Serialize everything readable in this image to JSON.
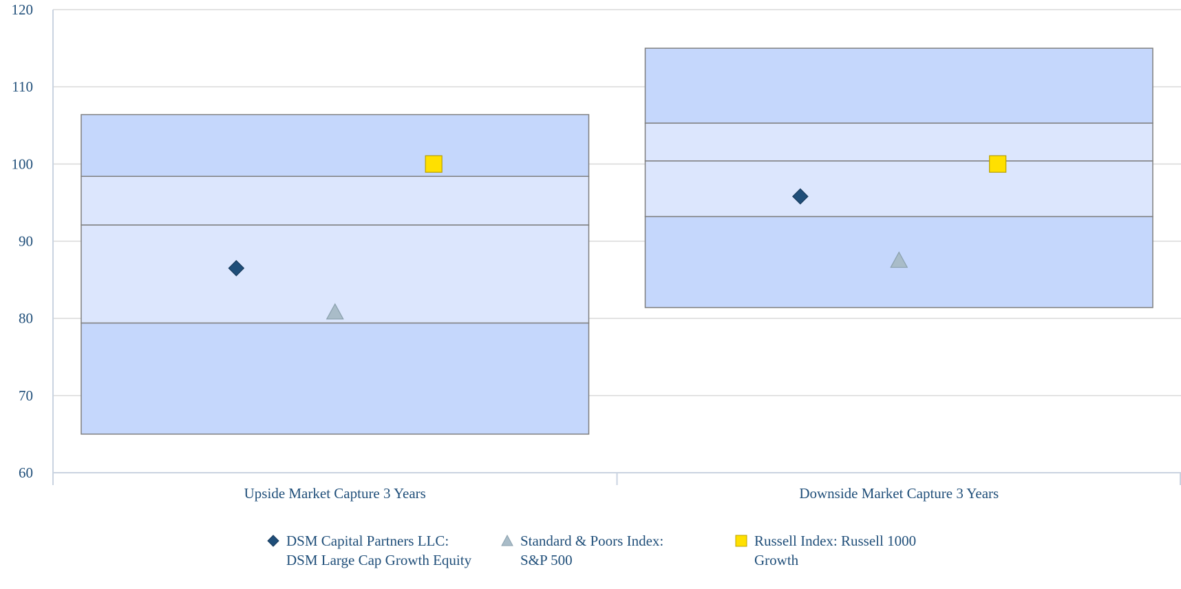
{
  "chart_data": {
    "type": "floating-bar",
    "title": "",
    "xlabel": "",
    "ylabel": "",
    "ylim": [
      60,
      120
    ],
    "yticks": [
      60,
      70,
      80,
      90,
      100,
      110,
      120
    ],
    "grid": true,
    "legend_position": "bottom",
    "categories": [
      "Upside Market Capture 3 Years",
      "Downside Market Capture 3 Years"
    ],
    "ranges": [
      {
        "category": "Upside Market Capture 3 Years",
        "bands": [
          65.0,
          79.4,
          92.1,
          98.4,
          106.4
        ]
      },
      {
        "category": "Downside Market Capture 3 Years",
        "bands": [
          81.4,
          93.2,
          100.4,
          105.3,
          115.0
        ]
      }
    ],
    "series": [
      {
        "name": "DSM Capital Partners LLC: DSM Large Cap Growth Equity",
        "marker": "diamond",
        "color": "#1f4e79",
        "values": [
          86.5,
          95.8
        ]
      },
      {
        "name": "Standard & Poors Index: S&P 500",
        "marker": "triangle",
        "color": "#a9bcc8",
        "values": [
          80.8,
          87.5
        ]
      },
      {
        "name": "Russell Index: Russell 1000 Growth",
        "marker": "square",
        "color": "#ffe000",
        "values": [
          100.0,
          100.0
        ]
      }
    ],
    "colors": {
      "outer_band": "#c5d7fc",
      "inner_band": "#dce6fd",
      "band_border": "#7f7f7f",
      "gridline": "#d9d9d9",
      "axis": "#c9d3e0",
      "text": "#1f4e79"
    }
  }
}
